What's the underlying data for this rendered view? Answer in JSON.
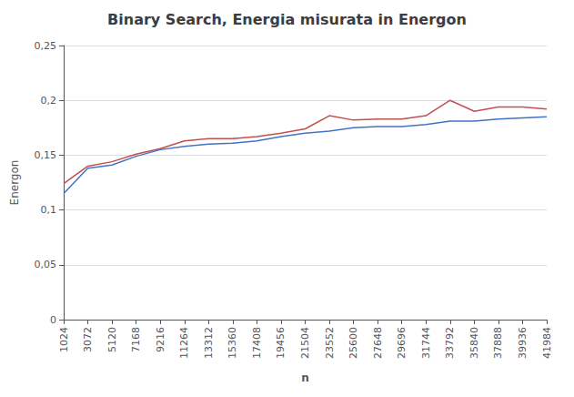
{
  "chart_data": {
    "type": "line",
    "title": "Binary Search, Energia misurata in Energon",
    "xlabel": "n",
    "ylabel": "Energon",
    "x": [
      1024,
      3072,
      5120,
      7168,
      9216,
      11264,
      13312,
      15360,
      17408,
      19456,
      21504,
      23552,
      25600,
      27648,
      29696,
      31744,
      33792,
      35840,
      37888,
      39936,
      41984
    ],
    "series": [
      {
        "color": "#C0504D",
        "values": [
          0.124,
          0.14,
          0.144,
          0.151,
          0.156,
          0.163,
          0.165,
          0.165,
          0.167,
          0.17,
          0.174,
          0.186,
          0.182,
          0.183,
          0.183,
          0.186,
          0.2,
          0.19,
          0.194,
          0.194,
          0.192
        ]
      },
      {
        "color": "#4472C4",
        "values": [
          0.115,
          0.138,
          0.141,
          0.149,
          0.155,
          0.158,
          0.16,
          0.161,
          0.163,
          0.167,
          0.17,
          0.172,
          0.175,
          0.176,
          0.176,
          0.178,
          0.181,
          0.181,
          0.183,
          0.184,
          0.185
        ]
      }
    ],
    "xlim": [
      1024,
      41984
    ],
    "xticks": [
      1024,
      3072,
      5120,
      7168,
      9216,
      11264,
      13312,
      15360,
      17408,
      19456,
      21504,
      23552,
      25600,
      27648,
      29696,
      31744,
      33792,
      35840,
      37888,
      39936,
      41984
    ],
    "ylim": [
      0,
      0.25
    ],
    "yticks": [
      0,
      {
        "value": 0.05,
        "label": "0,05"
      },
      {
        "value": 0.1,
        "label": "0,1"
      },
      {
        "value": 0.15,
        "label": "0,15"
      },
      {
        "value": 0.2,
        "label": "0,2"
      },
      {
        "value": 0.25,
        "label": "0,25"
      }
    ],
    "grid": true
  }
}
